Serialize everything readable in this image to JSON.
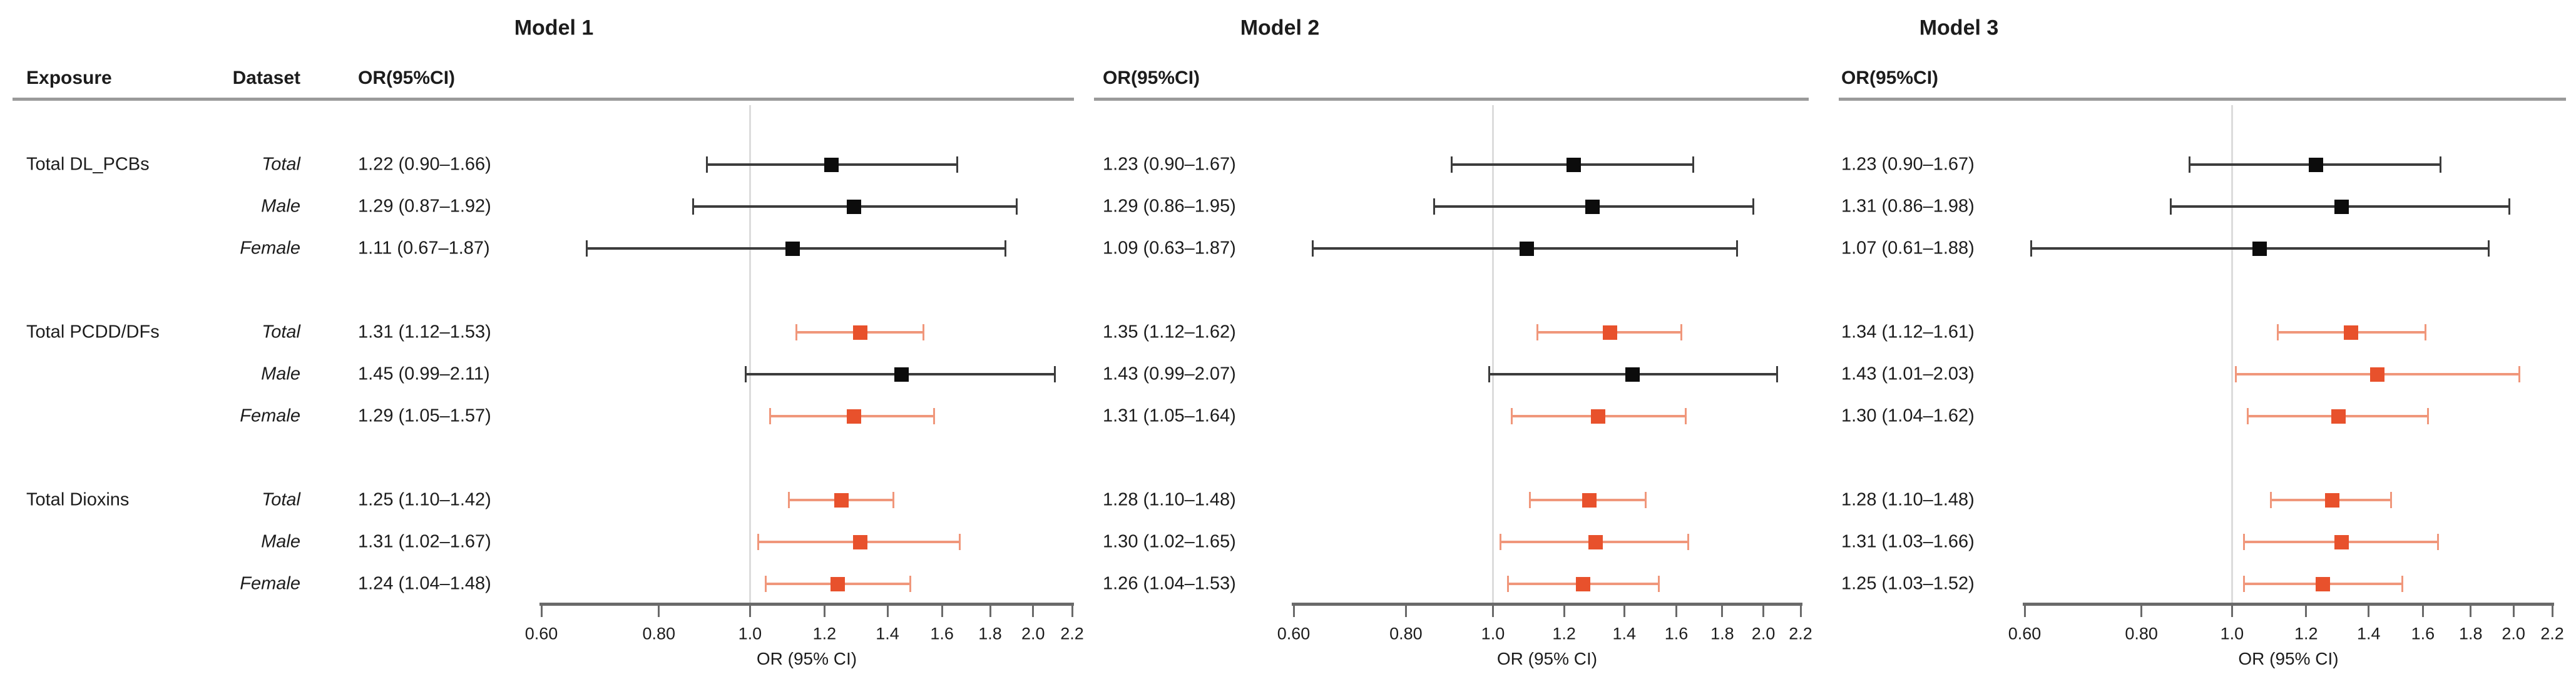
{
  "chart_data": {
    "type": "forest",
    "columns": {
      "exposure": "Exposure",
      "dataset": "Dataset",
      "or_ci": "OR(95%CI)"
    },
    "x_axis": {
      "label": "OR (95% CI)",
      "scale": "log",
      "range": [
        0.6,
        2.2
      ],
      "ticks": [
        0.6,
        0.8,
        1.0,
        1.2,
        1.4,
        1.6,
        1.8,
        2.0,
        2.2
      ],
      "tick_labels": [
        "0.60",
        "0.80",
        "1.0",
        "1.2",
        "1.4",
        "1.6",
        "1.8",
        "2.0",
        "2.2"
      ],
      "reference_line": 1.0,
      "grid": "off"
    },
    "legend": "none",
    "colors": {
      "significant_marker": "#e8512c",
      "significant_line": "#f0977b",
      "nonsignificant_marker": "#0c0c0c",
      "nonsignificant_line": "#3c3c3c",
      "reference_line": "#dcdcdc",
      "axis_line": "#6a6a6a",
      "header_rule": "#9a9a9a",
      "text": "#1c1c1c"
    },
    "rows_meta": [
      {
        "exposure": "Total DL_PCBs",
        "dataset": "Total"
      },
      {
        "exposure": "",
        "dataset": "Male"
      },
      {
        "exposure": "",
        "dataset": "Female"
      },
      {
        "exposure": "Total PCDD/DFs",
        "dataset": "Total"
      },
      {
        "exposure": "",
        "dataset": "Male"
      },
      {
        "exposure": "",
        "dataset": "Female"
      },
      {
        "exposure": "Total Dioxins",
        "dataset": "Total"
      },
      {
        "exposure": "",
        "dataset": "Male"
      },
      {
        "exposure": "",
        "dataset": "Female"
      }
    ],
    "models": [
      {
        "title": "Model 1",
        "estimates": [
          {
            "label": "1.22 (0.90–1.66)",
            "or": 1.22,
            "lo": 0.9,
            "hi": 1.66,
            "significant": false
          },
          {
            "label": "1.29 (0.87–1.92)",
            "or": 1.29,
            "lo": 0.87,
            "hi": 1.92,
            "significant": false
          },
          {
            "label": "1.11 (0.67–1.87)",
            "or": 1.11,
            "lo": 0.67,
            "hi": 1.87,
            "significant": false
          },
          {
            "label": "1.31 (1.12–1.53)",
            "or": 1.31,
            "lo": 1.12,
            "hi": 1.53,
            "significant": true
          },
          {
            "label": "1.45 (0.99–2.11)",
            "or": 1.45,
            "lo": 0.99,
            "hi": 2.11,
            "significant": false
          },
          {
            "label": "1.29 (1.05–1.57)",
            "or": 1.29,
            "lo": 1.05,
            "hi": 1.57,
            "significant": true
          },
          {
            "label": "1.25 (1.10–1.42)",
            "or": 1.25,
            "lo": 1.1,
            "hi": 1.42,
            "significant": true
          },
          {
            "label": "1.31 (1.02–1.67)",
            "or": 1.31,
            "lo": 1.02,
            "hi": 1.67,
            "significant": true
          },
          {
            "label": "1.24 (1.04–1.48)",
            "or": 1.24,
            "lo": 1.04,
            "hi": 1.48,
            "significant": true
          }
        ]
      },
      {
        "title": "Model 2",
        "estimates": [
          {
            "label": "1.23 (0.90–1.67)",
            "or": 1.23,
            "lo": 0.9,
            "hi": 1.67,
            "significant": false
          },
          {
            "label": "1.29 (0.86–1.95)",
            "or": 1.29,
            "lo": 0.86,
            "hi": 1.95,
            "significant": false
          },
          {
            "label": "1.09 (0.63–1.87)",
            "or": 1.09,
            "lo": 0.63,
            "hi": 1.87,
            "significant": false
          },
          {
            "label": "1.35 (1.12–1.62)",
            "or": 1.35,
            "lo": 1.12,
            "hi": 1.62,
            "significant": true
          },
          {
            "label": "1.43 (0.99–2.07)",
            "or": 1.43,
            "lo": 0.99,
            "hi": 2.07,
            "significant": false
          },
          {
            "label": "1.31 (1.05–1.64)",
            "or": 1.31,
            "lo": 1.05,
            "hi": 1.64,
            "significant": true
          },
          {
            "label": "1.28 (1.10–1.48)",
            "or": 1.28,
            "lo": 1.1,
            "hi": 1.48,
            "significant": true
          },
          {
            "label": "1.30 (1.02–1.65)",
            "or": 1.3,
            "lo": 1.02,
            "hi": 1.65,
            "significant": true
          },
          {
            "label": "1.26 (1.04–1.53)",
            "or": 1.26,
            "lo": 1.04,
            "hi": 1.53,
            "significant": true
          }
        ]
      },
      {
        "title": "Model 3",
        "estimates": [
          {
            "label": "1.23 (0.90–1.67)",
            "or": 1.23,
            "lo": 0.9,
            "hi": 1.67,
            "significant": false
          },
          {
            "label": "1.31 (0.86–1.98)",
            "or": 1.31,
            "lo": 0.86,
            "hi": 1.98,
            "significant": false
          },
          {
            "label": "1.07 (0.61–1.88)",
            "or": 1.07,
            "lo": 0.61,
            "hi": 1.88,
            "significant": false
          },
          {
            "label": "1.34 (1.12–1.61)",
            "or": 1.34,
            "lo": 1.12,
            "hi": 1.61,
            "significant": true
          },
          {
            "label": "1.43 (1.01–2.03)",
            "or": 1.43,
            "lo": 1.01,
            "hi": 2.03,
            "significant": true
          },
          {
            "label": "1.30 (1.04–1.62)",
            "or": 1.3,
            "lo": 1.04,
            "hi": 1.62,
            "significant": true
          },
          {
            "label": "1.28 (1.10–1.48)",
            "or": 1.28,
            "lo": 1.1,
            "hi": 1.48,
            "significant": true
          },
          {
            "label": "1.31 (1.03–1.66)",
            "or": 1.31,
            "lo": 1.03,
            "hi": 1.66,
            "significant": true
          },
          {
            "label": "1.25 (1.03–1.52)",
            "or": 1.25,
            "lo": 1.03,
            "hi": 1.52,
            "significant": true
          }
        ]
      }
    ]
  }
}
